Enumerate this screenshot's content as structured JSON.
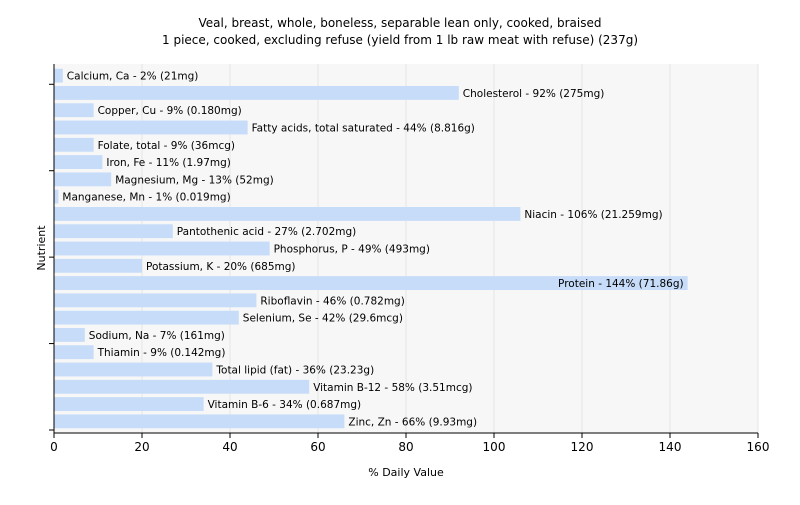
{
  "chart_data": {
    "type": "bar",
    "orientation": "horizontal",
    "title": "Veal, breast, whole, boneless, separable lean only, cooked, braised",
    "subtitle": "1 piece, cooked, excluding refuse (yield from 1 lb raw meat with refuse) (237g)",
    "xlabel": "% Daily Value",
    "ylabel": "Nutrient",
    "xlim": [
      0,
      160
    ],
    "xticks": [
      0,
      20,
      40,
      60,
      80,
      100,
      120,
      140,
      160
    ],
    "grid": true,
    "bar_color": "#c6dcf8",
    "categories": [
      "Calcium, Ca",
      "Cholesterol",
      "Copper, Cu",
      "Fatty acids, total saturated",
      "Folate, total",
      "Iron, Fe",
      "Magnesium, Mg",
      "Manganese, Mn",
      "Niacin",
      "Pantothenic acid",
      "Phosphorus, P",
      "Potassium, K",
      "Protein",
      "Riboflavin",
      "Selenium, Se",
      "Sodium, Na",
      "Thiamin",
      "Total lipid (fat)",
      "Vitamin B-12",
      "Vitamin B-6",
      "Zinc, Zn"
    ],
    "values": [
      2,
      92,
      9,
      44,
      9,
      11,
      13,
      1,
      106,
      27,
      49,
      20,
      144,
      46,
      42,
      7,
      9,
      36,
      58,
      34,
      66
    ],
    "labels": [
      "Calcium, Ca - 2% (21mg)",
      "Cholesterol - 92% (275mg)",
      "Copper, Cu - 9% (0.180mg)",
      "Fatty acids, total saturated - 44% (8.816g)",
      "Folate, total - 9% (36mcg)",
      "Iron, Fe - 11% (1.97mg)",
      "Magnesium, Mg - 13% (52mg)",
      "Manganese, Mn - 1% (0.019mg)",
      "Niacin - 106% (21.259mg)",
      "Pantothenic acid - 27% (2.702mg)",
      "Phosphorus, P - 49% (493mg)",
      "Potassium, K - 20% (685mg)",
      "Protein - 144% (71.86g)",
      "Riboflavin - 46% (0.782mg)",
      "Selenium, Se - 42% (29.6mcg)",
      "Sodium, Na - 7% (161mg)",
      "Thiamin - 9% (0.142mg)",
      "Total lipid (fat) - 36% (23.23g)",
      "Vitamin B-12 - 58% (3.51mcg)",
      "Vitamin B-6 - 34% (0.687mg)",
      "Zinc, Zn - 66% (9.93mg)"
    ]
  }
}
